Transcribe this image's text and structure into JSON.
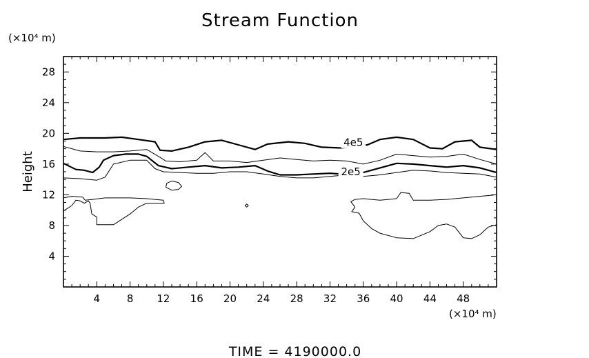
{
  "chart_data": {
    "type": "contour",
    "title": "Stream Function",
    "ylabel": "Height",
    "y_unit_label": "(×10⁴ m)",
    "x_unit_label": "(×10⁴ m)",
    "xlim": [
      0,
      52
    ],
    "ylim": [
      0,
      30
    ],
    "x_ticks": [
      4,
      8,
      12,
      16,
      20,
      24,
      28,
      32,
      36,
      40,
      44,
      48
    ],
    "y_ticks": [
      4,
      8,
      12,
      16,
      20,
      24,
      28
    ],
    "footer": "TIME  =  4190000.0",
    "contours": [
      {
        "name": "contour-4e5",
        "label": "4e5",
        "label_at": [
          34.8,
          18.8
        ],
        "bold": true,
        "closed": false,
        "points": [
          [
            0,
            19.2
          ],
          [
            2,
            19.4
          ],
          [
            5,
            19.4
          ],
          [
            7,
            19.5
          ],
          [
            9,
            19.2
          ],
          [
            11,
            18.9
          ],
          [
            11.6,
            17.8
          ],
          [
            13,
            17.7
          ],
          [
            15,
            18.2
          ],
          [
            17,
            18.9
          ],
          [
            19,
            19.1
          ],
          [
            21,
            18.5
          ],
          [
            23,
            17.9
          ],
          [
            24.5,
            18.6
          ],
          [
            27,
            18.9
          ],
          [
            29,
            18.7
          ],
          [
            31,
            18.2
          ],
          [
            33.3,
            18.1
          ],
          [
            36.5,
            18.5
          ],
          [
            38,
            19.2
          ],
          [
            40,
            19.5
          ],
          [
            42,
            19.2
          ],
          [
            44,
            18.1
          ],
          [
            45.5,
            18.0
          ],
          [
            47,
            18.9
          ],
          [
            49,
            19.1
          ],
          [
            50,
            18.2
          ],
          [
            52,
            17.9
          ]
        ]
      },
      {
        "name": "contour-3e5",
        "bold": false,
        "closed": false,
        "points": [
          [
            0,
            18.3
          ],
          [
            2,
            17.7
          ],
          [
            4,
            17.6
          ],
          [
            6,
            17.6
          ],
          [
            8,
            17.7
          ],
          [
            10,
            17.9
          ],
          [
            11.4,
            17.0
          ],
          [
            12.3,
            16.4
          ],
          [
            14,
            16.3
          ],
          [
            16,
            16.5
          ],
          [
            17,
            17.5
          ],
          [
            18,
            16.4
          ],
          [
            20,
            16.4
          ],
          [
            22,
            16.2
          ],
          [
            24,
            16.5
          ],
          [
            26,
            16.8
          ],
          [
            28,
            16.6
          ],
          [
            30,
            16.4
          ],
          [
            32,
            16.5
          ],
          [
            34,
            16.4
          ],
          [
            36,
            16.0
          ],
          [
            38,
            16.5
          ],
          [
            40,
            17.3
          ],
          [
            42,
            17.1
          ],
          [
            44,
            16.9
          ],
          [
            46,
            17.0
          ],
          [
            48,
            17.3
          ],
          [
            50,
            16.6
          ],
          [
            52,
            16.0
          ]
        ]
      },
      {
        "name": "contour-2e5",
        "label": "2e5",
        "label_at": [
          34.5,
          15.0
        ],
        "bold": true,
        "closed": false,
        "points": [
          [
            0,
            16.1
          ],
          [
            1.5,
            15.3
          ],
          [
            2.5,
            15.2
          ],
          [
            3.5,
            14.9
          ],
          [
            4.3,
            15.6
          ],
          [
            4.8,
            16.5
          ],
          [
            6,
            17.1
          ],
          [
            7.5,
            17.3
          ],
          [
            9,
            17.3
          ],
          [
            10,
            17.0
          ],
          [
            11.4,
            15.8
          ],
          [
            13,
            15.4
          ],
          [
            15,
            15.6
          ],
          [
            17,
            15.8
          ],
          [
            19,
            15.5
          ],
          [
            21,
            15.6
          ],
          [
            23,
            15.8
          ],
          [
            24.5,
            15.1
          ],
          [
            26,
            14.6
          ],
          [
            28,
            14.6
          ],
          [
            30,
            14.7
          ],
          [
            32,
            14.8
          ],
          [
            33.3,
            14.7
          ],
          [
            36,
            14.9
          ],
          [
            38,
            15.5
          ],
          [
            40,
            16.1
          ],
          [
            42,
            16.0
          ],
          [
            44,
            15.8
          ],
          [
            46,
            15.6
          ],
          [
            48,
            15.8
          ],
          [
            50,
            15.5
          ],
          [
            52,
            14.9
          ]
        ]
      },
      {
        "name": "contour-1e5",
        "bold": false,
        "closed": false,
        "points": [
          [
            0,
            14.2
          ],
          [
            2,
            14.1
          ],
          [
            4,
            13.9
          ],
          [
            5,
            14.3
          ],
          [
            6,
            16.0
          ],
          [
            8,
            16.5
          ],
          [
            10,
            16.5
          ],
          [
            11,
            15.4
          ],
          [
            12,
            15.0
          ],
          [
            14,
            14.9
          ],
          [
            16,
            14.8
          ],
          [
            18,
            14.8
          ],
          [
            20,
            15.0
          ],
          [
            22,
            15.0
          ],
          [
            24,
            14.7
          ],
          [
            26,
            14.4
          ],
          [
            28,
            14.2
          ],
          [
            30,
            14.2
          ],
          [
            32,
            14.4
          ],
          [
            34,
            14.6
          ],
          [
            36,
            14.4
          ],
          [
            38,
            14.6
          ],
          [
            40,
            14.9
          ],
          [
            42,
            15.2
          ],
          [
            44,
            15.1
          ],
          [
            46,
            14.9
          ],
          [
            48,
            14.8
          ],
          [
            50,
            14.7
          ],
          [
            52,
            14.3
          ]
        ]
      },
      {
        "name": "contour-left-pocket",
        "bold": false,
        "closed": false,
        "points": [
          [
            0,
            11.6
          ],
          [
            1,
            11.8
          ],
          [
            2.3,
            11.7
          ],
          [
            2.6,
            11.3
          ],
          [
            3.5,
            11.4
          ],
          [
            5,
            11.6
          ],
          [
            8,
            11.6
          ],
          [
            10,
            11.5
          ],
          [
            12,
            11.3
          ],
          [
            12.1,
            10.9
          ],
          [
            10,
            10.9
          ],
          [
            9,
            10.4
          ],
          [
            8,
            9.5
          ],
          [
            6,
            8.1
          ],
          [
            4,
            8.1
          ],
          [
            4,
            9.1
          ],
          [
            3.4,
            9.5
          ],
          [
            3.2,
            10.9
          ],
          [
            3,
            11.2
          ],
          [
            2.5,
            10.9
          ],
          [
            2,
            11.2
          ],
          [
            1.5,
            11.3
          ],
          [
            1,
            10.6
          ],
          [
            0.3,
            10.1
          ],
          [
            0,
            9.9
          ]
        ]
      },
      {
        "name": "contour-right-pocket",
        "bold": false,
        "closed": false,
        "points": [
          [
            52,
            12.0
          ],
          [
            50,
            11.8
          ],
          [
            48,
            11.6
          ],
          [
            46,
            11.4
          ],
          [
            44,
            11.3
          ],
          [
            42,
            11.3
          ],
          [
            41.5,
            12.2
          ],
          [
            40.5,
            12.3
          ],
          [
            40,
            11.5
          ],
          [
            38,
            11.3
          ],
          [
            36,
            11.5
          ],
          [
            35,
            11.4
          ],
          [
            34.5,
            11.1
          ],
          [
            35,
            10.4
          ],
          [
            34.6,
            9.8
          ],
          [
            35.5,
            9.6
          ],
          [
            36,
            8.6
          ],
          [
            37,
            7.6
          ],
          [
            38,
            7.0
          ],
          [
            40,
            6.4
          ],
          [
            42,
            6.3
          ],
          [
            44,
            7.2
          ],
          [
            45,
            8.0
          ],
          [
            46,
            8.2
          ],
          [
            47,
            7.8
          ],
          [
            48,
            6.4
          ],
          [
            49,
            6.3
          ],
          [
            50,
            6.8
          ],
          [
            51,
            7.8
          ],
          [
            52,
            8.1
          ]
        ]
      },
      {
        "name": "contour-small-loop",
        "bold": false,
        "closed": true,
        "points": [
          [
            12.3,
            13.0
          ],
          [
            13,
            12.6
          ],
          [
            13.8,
            12.7
          ],
          [
            14.2,
            13.1
          ],
          [
            13.8,
            13.6
          ],
          [
            13,
            13.8
          ],
          [
            12.4,
            13.5
          ]
        ]
      },
      {
        "name": "contour-dot",
        "bold": false,
        "closed": true,
        "points": [
          [
            21.8,
            10.6
          ],
          [
            22,
            10.4
          ],
          [
            22.2,
            10.6
          ],
          [
            22,
            10.8
          ]
        ]
      }
    ]
  }
}
